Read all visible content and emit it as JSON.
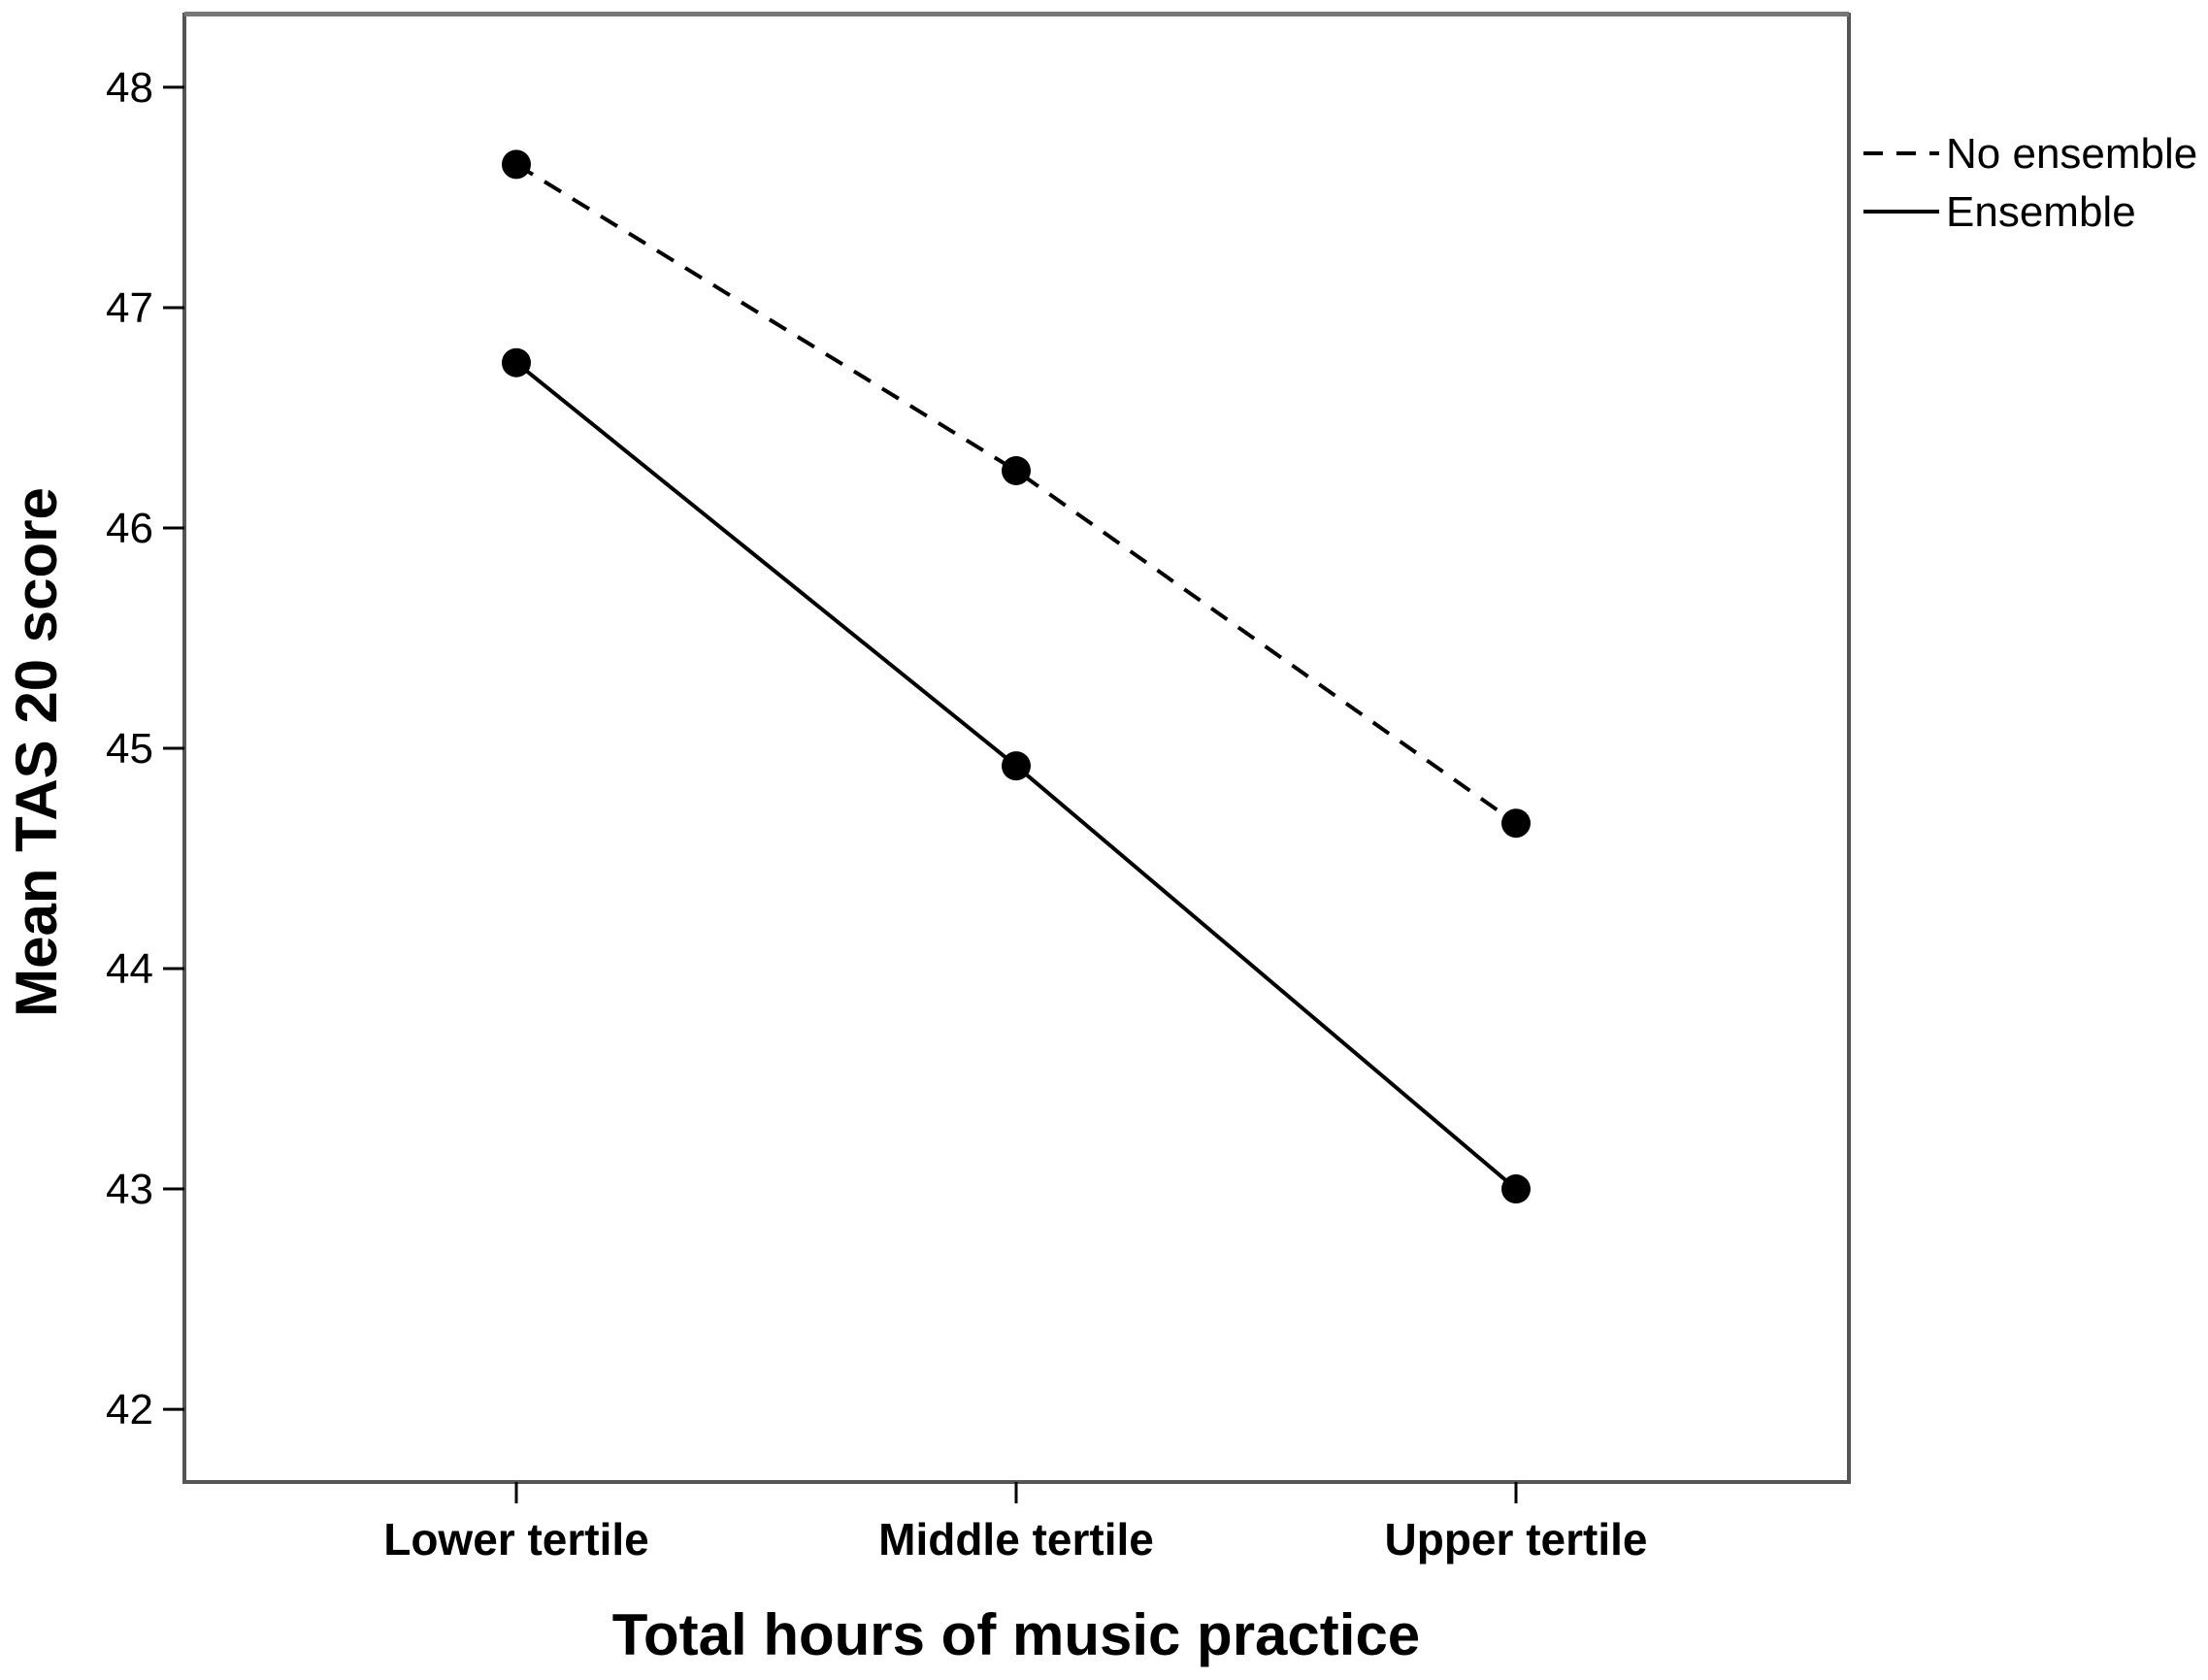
{
  "chart_data": {
    "type": "line",
    "title": "",
    "xlabel": "Total hours of music practice",
    "ylabel": "Mean TAS 20 score",
    "categories": [
      "Lower tertile",
      "Middle tertile",
      "Upper tertile"
    ],
    "ylim": [
      41.67,
      48.33
    ],
    "yticks": [
      42,
      43,
      44,
      45,
      46,
      47,
      48
    ],
    "grid": false,
    "legend_position": "top-right, outside plot",
    "series": [
      {
        "name": "No ensemble",
        "line_style": "dashed",
        "color": "#000000",
        "values": [
          47.65,
          46.26,
          44.66
        ]
      },
      {
        "name": "Ensemble",
        "line_style": "solid",
        "color": "#000000",
        "values": [
          46.75,
          44.92,
          43.0
        ]
      }
    ]
  }
}
